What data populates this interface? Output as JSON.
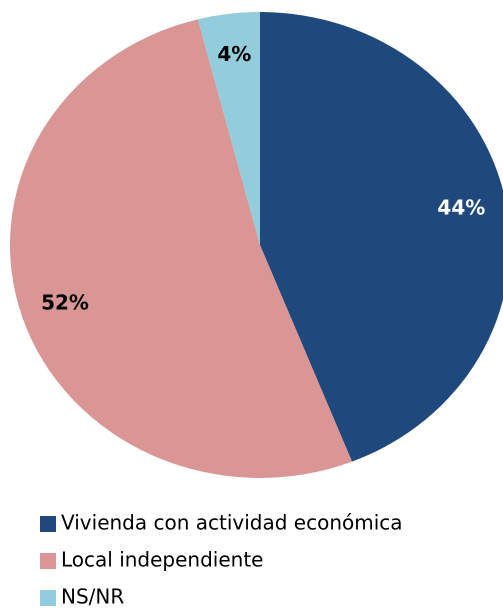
{
  "chart_data": {
    "type": "pie",
    "categories": [
      "Vivienda con actividad económica",
      "Local independiente",
      "NS/NR"
    ],
    "values": [
      44,
      52,
      4
    ],
    "value_labels": [
      "44%",
      "52%",
      "4%"
    ],
    "colors": [
      "#1f497d",
      "#d99694",
      "#93cddd"
    ],
    "label_colors": [
      "#ffffff",
      "#000000",
      "#000000"
    ],
    "legend": "bottom"
  }
}
